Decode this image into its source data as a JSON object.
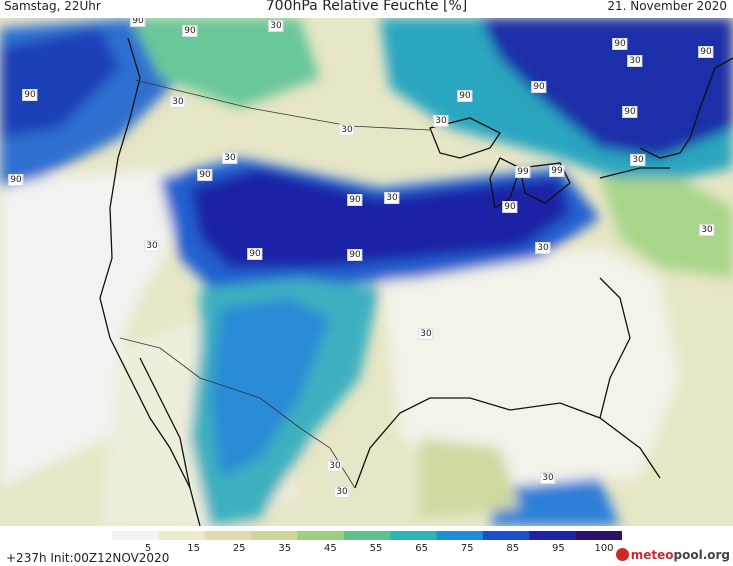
{
  "header": {
    "left": "Samstag, 22Uhr",
    "title": "700hPa Relative Feuchte [%]",
    "date": "21. November 2020"
  },
  "footer": {
    "run": "+237h  Init:00Z12NOV2020",
    "logo_prefix": "meteo",
    "logo_suffix": "pool",
    "logo_tld": ".org"
  },
  "colorbar": {
    "ticks": [
      "5",
      "15",
      "25",
      "35",
      "45",
      "55",
      "65",
      "75",
      "85",
      "95",
      "100"
    ],
    "colors": [
      "#f4f4f4",
      "#ececcc",
      "#e0dcb0",
      "#cbd79a",
      "#9bd07e",
      "#5cc38c",
      "#2db4b4",
      "#1b8ed6",
      "#1b4fd0",
      "#1f22a6",
      "#2a1070"
    ]
  },
  "map_labels": [
    {
      "text": "90"
    },
    {
      "text": "90"
    },
    {
      "text": "90"
    },
    {
      "text": "90"
    },
    {
      "text": "90"
    },
    {
      "text": "90"
    },
    {
      "text": "90"
    },
    {
      "text": "90"
    },
    {
      "text": "90"
    },
    {
      "text": "90"
    },
    {
      "text": "90"
    },
    {
      "text": "90"
    },
    {
      "text": "90"
    },
    {
      "text": "90"
    },
    {
      "text": "99"
    },
    {
      "text": "99"
    },
    {
      "text": "30"
    },
    {
      "text": "30"
    },
    {
      "text": "30"
    },
    {
      "text": "30"
    },
    {
      "text": "30"
    },
    {
      "text": "30"
    },
    {
      "text": "30"
    },
    {
      "text": "30"
    },
    {
      "text": "30"
    },
    {
      "text": "30"
    },
    {
      "text": "30"
    },
    {
      "text": "30"
    },
    {
      "text": "30"
    },
    {
      "text": "30"
    },
    {
      "text": "30"
    }
  ]
}
